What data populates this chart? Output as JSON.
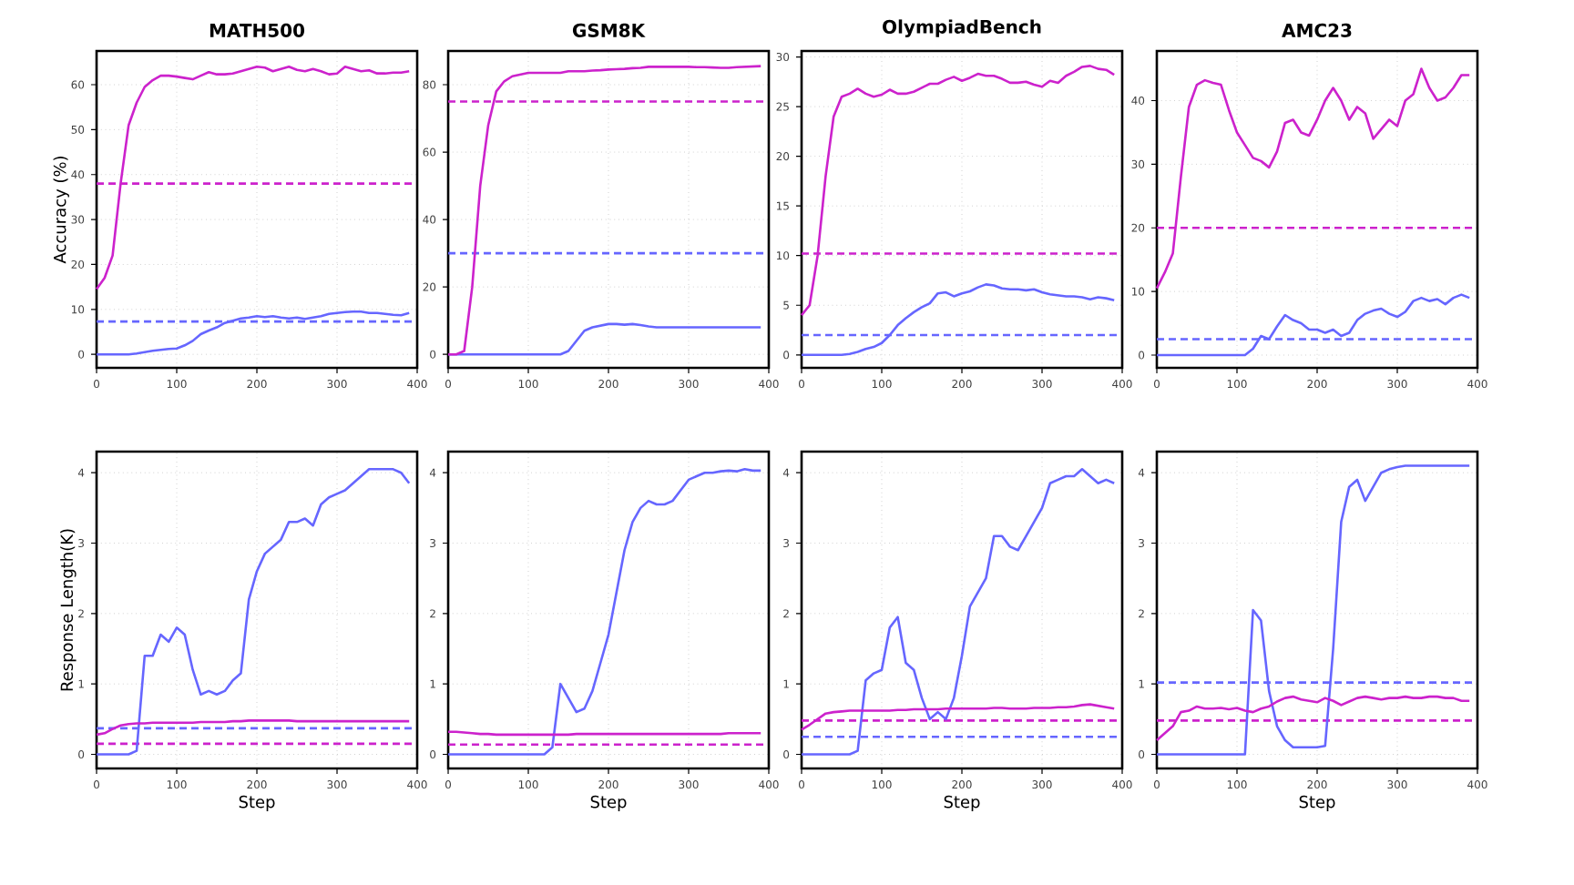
{
  "chart_data": [
    {
      "type": "line",
      "title": "MATH500",
      "ylabel": "Accuracy (%)",
      "grid": true,
      "xlim": [
        0,
        400
      ],
      "xticks": [
        0,
        100,
        200,
        300,
        400
      ],
      "ylim": [
        -3,
        67.5
      ],
      "yticks": [
        0,
        10,
        20,
        30,
        40,
        50,
        60
      ],
      "x": [
        0,
        10,
        20,
        30,
        40,
        50,
        60,
        70,
        80,
        90,
        100,
        110,
        120,
        130,
        140,
        150,
        160,
        170,
        180,
        190,
        200,
        210,
        220,
        230,
        240,
        250,
        260,
        270,
        280,
        290,
        300,
        310,
        320,
        330,
        340,
        350,
        360,
        370,
        380,
        390
      ],
      "series": [
        {
          "color": "#6666ff",
          "values": [
            0,
            0,
            0,
            0,
            0,
            0.2,
            0.5,
            0.8,
            1,
            1.2,
            1.3,
            2,
            3,
            4.5,
            5.3,
            6,
            7,
            7.5,
            8,
            8.2,
            8.5,
            8.3,
            8.5,
            8.2,
            8,
            8.2,
            7.9,
            8.2,
            8.5,
            9,
            9.2,
            9.4,
            9.5,
            9.5,
            9.2,
            9.2,
            9,
            8.8,
            8.7,
            9.2
          ]
        },
        {
          "color": "#cc22cc",
          "values": [
            14.5,
            17,
            22,
            38,
            51,
            56,
            59.5,
            61,
            62,
            62,
            61.8,
            61.5,
            61.2,
            62,
            62.8,
            62.3,
            62.3,
            62.5,
            63,
            63.5,
            64,
            63.8,
            63,
            63.5,
            64,
            63.3,
            63,
            63.5,
            63,
            62.3,
            62.5,
            64,
            63.5,
            63,
            63.2,
            62.5,
            62.5,
            62.7,
            62.7,
            63
          ]
        }
      ],
      "ref_lines": [
        {
          "axis": "y",
          "value": 38,
          "color": "#cc22cc",
          "line_style": "dashed"
        },
        {
          "axis": "y",
          "value": 7.3,
          "color": "#6666ff",
          "line_style": "dashed"
        }
      ]
    },
    {
      "type": "line",
      "title": "GSM8K",
      "grid": true,
      "xlim": [
        0,
        400
      ],
      "xticks": [
        0,
        100,
        200,
        300,
        400
      ],
      "ylim": [
        -4,
        90
      ],
      "yticks": [
        0,
        20,
        40,
        60,
        80
      ],
      "x": [
        0,
        10,
        20,
        30,
        40,
        50,
        60,
        70,
        80,
        90,
        100,
        110,
        120,
        130,
        140,
        150,
        160,
        170,
        180,
        190,
        200,
        210,
        220,
        230,
        240,
        250,
        260,
        270,
        280,
        290,
        300,
        310,
        320,
        330,
        340,
        350,
        360,
        370,
        380,
        390
      ],
      "series": [
        {
          "color": "#6666ff",
          "values": [
            0,
            0,
            0,
            0,
            0,
            0,
            0,
            0,
            0,
            0,
            0,
            0,
            0,
            0,
            0,
            1,
            4,
            7,
            8,
            8.5,
            9,
            9,
            8.8,
            9,
            8.7,
            8.3,
            8,
            8,
            8,
            8,
            8,
            8,
            8,
            8,
            8,
            8,
            8,
            8,
            8,
            8
          ]
        },
        {
          "color": "#cc22cc",
          "values": [
            0,
            0,
            1,
            20,
            50,
            68,
            78,
            81,
            82.5,
            83,
            83.5,
            83.5,
            83.5,
            83.5,
            83.5,
            84,
            84,
            84,
            84.2,
            84.3,
            84.5,
            84.6,
            84.7,
            84.9,
            85,
            85.3,
            85.3,
            85.3,
            85.3,
            85.3,
            85.3,
            85.2,
            85.2,
            85.1,
            85,
            85,
            85.2,
            85.3,
            85.4,
            85.5
          ]
        }
      ],
      "ref_lines": [
        {
          "axis": "y",
          "value": 75,
          "color": "#cc22cc",
          "line_style": "dashed"
        },
        {
          "axis": "y",
          "value": 30,
          "color": "#6666ff",
          "line_style": "dashed"
        }
      ]
    },
    {
      "type": "line",
      "title": "OlympiadBench",
      "grid": true,
      "xlim": [
        0,
        400
      ],
      "xticks": [
        0,
        100,
        200,
        300,
        400
      ],
      "ylim": [
        -1.3,
        30.6
      ],
      "yticks": [
        0,
        5,
        10,
        15,
        20,
        25,
        30
      ],
      "x": [
        0,
        10,
        20,
        30,
        40,
        50,
        60,
        70,
        80,
        90,
        100,
        110,
        120,
        130,
        140,
        150,
        160,
        170,
        180,
        190,
        200,
        210,
        220,
        230,
        240,
        250,
        260,
        270,
        280,
        290,
        300,
        310,
        320,
        330,
        340,
        350,
        360,
        370,
        380,
        390
      ],
      "series": [
        {
          "color": "#6666ff",
          "values": [
            0,
            0,
            0,
            0,
            0,
            0,
            0.1,
            0.3,
            0.6,
            0.8,
            1.2,
            2,
            3,
            3.7,
            4.3,
            4.8,
            5.2,
            6.2,
            6.3,
            5.9,
            6.2,
            6.4,
            6.8,
            7.1,
            7,
            6.7,
            6.6,
            6.6,
            6.5,
            6.6,
            6.3,
            6.1,
            6,
            5.9,
            5.9,
            5.8,
            5.6,
            5.8,
            5.7,
            5.5
          ]
        },
        {
          "color": "#cc22cc",
          "values": [
            4,
            5,
            10,
            18,
            24,
            26,
            26.3,
            26.8,
            26.3,
            26,
            26.2,
            26.7,
            26.3,
            26.3,
            26.5,
            26.9,
            27.3,
            27.3,
            27.7,
            28,
            27.6,
            27.9,
            28.3,
            28.1,
            28.1,
            27.8,
            27.4,
            27.4,
            27.5,
            27.2,
            27,
            27.6,
            27.4,
            28.1,
            28.5,
            29,
            29.1,
            28.8,
            28.7,
            28.2
          ]
        }
      ],
      "ref_lines": [
        {
          "axis": "y",
          "value": 10.2,
          "color": "#cc22cc",
          "line_style": "dashed"
        },
        {
          "axis": "y",
          "value": 2,
          "color": "#6666ff",
          "line_style": "dashed"
        }
      ]
    },
    {
      "type": "line",
      "title": "AMC23",
      "grid": true,
      "xlim": [
        0,
        400
      ],
      "xticks": [
        0,
        100,
        200,
        300,
        400
      ],
      "ylim": [
        -2,
        47.8
      ],
      "yticks": [
        0,
        10,
        20,
        30,
        40
      ],
      "x": [
        0,
        10,
        20,
        30,
        40,
        50,
        60,
        70,
        80,
        90,
        100,
        110,
        120,
        130,
        140,
        150,
        160,
        170,
        180,
        190,
        200,
        210,
        220,
        230,
        240,
        250,
        260,
        270,
        280,
        290,
        300,
        310,
        320,
        330,
        340,
        350,
        360,
        370,
        380,
        390
      ],
      "series": [
        {
          "color": "#6666ff",
          "values": [
            0,
            0,
            0,
            0,
            0,
            0,
            0,
            0,
            0,
            0,
            0,
            0,
            1,
            3,
            2.5,
            4.5,
            6.3,
            5.5,
            5,
            4,
            4,
            3.5,
            4,
            3,
            3.5,
            5.5,
            6.5,
            7,
            7.3,
            6.5,
            6,
            6.8,
            8.5,
            9,
            8.5,
            8.8,
            8,
            9,
            9.5,
            9
          ]
        },
        {
          "color": "#cc22cc",
          "values": [
            10.5,
            13,
            16,
            28,
            39,
            42.5,
            43.2,
            42.8,
            42.5,
            38.5,
            35,
            33,
            31,
            30.5,
            29.5,
            32,
            36.5,
            37,
            35,
            34.5,
            37,
            40,
            42,
            40,
            37,
            39,
            38,
            34,
            35.5,
            37,
            36,
            40,
            41,
            45,
            42,
            40,
            40.5,
            42,
            44,
            44
          ]
        }
      ],
      "ref_lines": [
        {
          "axis": "y",
          "value": 20,
          "color": "#cc22cc",
          "line_style": "dashed"
        },
        {
          "axis": "y",
          "value": 2.5,
          "color": "#6666ff",
          "line_style": "dashed"
        }
      ]
    },
    {
      "type": "line",
      "xlabel": "Step",
      "ylabel": "Response Length(K)",
      "grid": true,
      "xlim": [
        0,
        400
      ],
      "xticks": [
        0,
        100,
        200,
        300,
        400
      ],
      "ylim": [
        -0.2,
        4.3
      ],
      "yticks": [
        0,
        1,
        2,
        3,
        4
      ],
      "x": [
        0,
        10,
        20,
        30,
        40,
        50,
        60,
        70,
        80,
        90,
        100,
        110,
        120,
        130,
        140,
        150,
        160,
        170,
        180,
        190,
        200,
        210,
        220,
        230,
        240,
        250,
        260,
        270,
        280,
        290,
        300,
        310,
        320,
        330,
        340,
        350,
        360,
        370,
        380,
        390
      ],
      "series": [
        {
          "color": "#6666ff",
          "values": [
            0,
            0,
            0,
            0,
            0,
            0.05,
            1.4,
            1.4,
            1.7,
            1.6,
            1.8,
            1.7,
            1.2,
            0.85,
            0.9,
            0.85,
            0.9,
            1.05,
            1.15,
            2.2,
            2.6,
            2.85,
            2.95,
            3.05,
            3.3,
            3.3,
            3.35,
            3.25,
            3.55,
            3.65,
            3.7,
            3.75,
            3.85,
            3.95,
            4.05,
            4.05,
            4.05,
            4.05,
            4,
            3.85
          ]
        },
        {
          "color": "#cc22cc",
          "values": [
            0.28,
            0.3,
            0.36,
            0.41,
            0.43,
            0.44,
            0.44,
            0.45,
            0.45,
            0.45,
            0.45,
            0.45,
            0.45,
            0.46,
            0.46,
            0.46,
            0.46,
            0.47,
            0.47,
            0.48,
            0.48,
            0.48,
            0.48,
            0.48,
            0.48,
            0.47,
            0.47,
            0.47,
            0.47,
            0.47,
            0.47,
            0.47,
            0.47,
            0.47,
            0.47,
            0.47,
            0.47,
            0.47,
            0.47,
            0.47
          ]
        }
      ],
      "ref_lines": [
        {
          "axis": "y",
          "value": 0.37,
          "color": "#6666ff",
          "line_style": "dashed"
        },
        {
          "axis": "y",
          "value": 0.15,
          "color": "#cc22cc",
          "line_style": "dashed"
        }
      ]
    },
    {
      "type": "line",
      "xlabel": "Step",
      "grid": true,
      "xlim": [
        0,
        400
      ],
      "xticks": [
        0,
        100,
        200,
        300,
        400
      ],
      "ylim": [
        -0.2,
        4.3
      ],
      "yticks": [
        0,
        1,
        2,
        3,
        4
      ],
      "x": [
        0,
        10,
        20,
        30,
        40,
        50,
        60,
        70,
        80,
        90,
        100,
        110,
        120,
        130,
        140,
        150,
        160,
        170,
        180,
        190,
        200,
        210,
        220,
        230,
        240,
        250,
        260,
        270,
        280,
        290,
        300,
        310,
        320,
        330,
        340,
        350,
        360,
        370,
        380,
        390
      ],
      "series": [
        {
          "color": "#6666ff",
          "values": [
            0,
            0,
            0,
            0,
            0,
            0,
            0,
            0,
            0,
            0,
            0,
            0,
            0,
            0.1,
            1,
            0.8,
            0.6,
            0.65,
            0.9,
            1.3,
            1.7,
            2.3,
            2.9,
            3.3,
            3.5,
            3.6,
            3.55,
            3.55,
            3.6,
            3.75,
            3.9,
            3.95,
            4,
            4,
            4.02,
            4.03,
            4.02,
            4.05,
            4.03,
            4.03
          ]
        },
        {
          "color": "#cc22cc",
          "values": [
            0.32,
            0.32,
            0.31,
            0.3,
            0.29,
            0.29,
            0.28,
            0.28,
            0.28,
            0.28,
            0.28,
            0.28,
            0.28,
            0.28,
            0.28,
            0.28,
            0.29,
            0.29,
            0.29,
            0.29,
            0.29,
            0.29,
            0.29,
            0.29,
            0.29,
            0.29,
            0.29,
            0.29,
            0.29,
            0.29,
            0.29,
            0.29,
            0.29,
            0.29,
            0.29,
            0.3,
            0.3,
            0.3,
            0.3,
            0.3
          ]
        }
      ],
      "ref_lines": [
        {
          "axis": "y",
          "value": 0.14,
          "color": "#cc22cc",
          "line_style": "dashed"
        }
      ]
    },
    {
      "type": "line",
      "xlabel": "Step",
      "grid": true,
      "xlim": [
        0,
        400
      ],
      "xticks": [
        0,
        100,
        200,
        300,
        400
      ],
      "ylim": [
        -0.2,
        4.3
      ],
      "yticks": [
        0,
        1,
        2,
        3,
        4
      ],
      "x": [
        0,
        10,
        20,
        30,
        40,
        50,
        60,
        70,
        80,
        90,
        100,
        110,
        120,
        130,
        140,
        150,
        160,
        170,
        180,
        190,
        200,
        210,
        220,
        230,
        240,
        250,
        260,
        270,
        280,
        290,
        300,
        310,
        320,
        330,
        340,
        350,
        360,
        370,
        380,
        390
      ],
      "series": [
        {
          "color": "#6666ff",
          "values": [
            0,
            0,
            0,
            0,
            0,
            0,
            0,
            0.05,
            1.05,
            1.15,
            1.2,
            1.8,
            1.95,
            1.3,
            1.2,
            0.8,
            0.5,
            0.6,
            0.5,
            0.8,
            1.4,
            2.1,
            2.3,
            2.5,
            3.1,
            3.1,
            2.95,
            2.9,
            3.1,
            3.3,
            3.5,
            3.85,
            3.9,
            3.95,
            3.95,
            4.05,
            3.95,
            3.85,
            3.9,
            3.85
          ]
        },
        {
          "color": "#cc22cc",
          "values": [
            0.35,
            0.42,
            0.5,
            0.58,
            0.6,
            0.61,
            0.62,
            0.62,
            0.62,
            0.62,
            0.62,
            0.62,
            0.63,
            0.63,
            0.64,
            0.64,
            0.64,
            0.64,
            0.65,
            0.65,
            0.65,
            0.65,
            0.65,
            0.65,
            0.66,
            0.66,
            0.65,
            0.65,
            0.65,
            0.66,
            0.66,
            0.66,
            0.67,
            0.67,
            0.68,
            0.7,
            0.71,
            0.69,
            0.67,
            0.65
          ]
        }
      ],
      "ref_lines": [
        {
          "axis": "y",
          "value": 0.48,
          "color": "#cc22cc",
          "line_style": "dashed"
        },
        {
          "axis": "y",
          "value": 0.25,
          "color": "#6666ff",
          "line_style": "dashed"
        }
      ]
    },
    {
      "type": "line",
      "xlabel": "Step",
      "grid": true,
      "xlim": [
        0,
        400
      ],
      "xticks": [
        0,
        100,
        200,
        300,
        400
      ],
      "ylim": [
        -0.2,
        4.3
      ],
      "yticks": [
        0,
        1,
        2,
        3,
        4
      ],
      "x": [
        0,
        10,
        20,
        30,
        40,
        50,
        60,
        70,
        80,
        90,
        100,
        110,
        120,
        130,
        140,
        150,
        160,
        170,
        180,
        190,
        200,
        210,
        220,
        230,
        240,
        250,
        260,
        270,
        280,
        290,
        300,
        310,
        320,
        330,
        340,
        350,
        360,
        370,
        380,
        390
      ],
      "series": [
        {
          "color": "#6666ff",
          "values": [
            0,
            0,
            0,
            0,
            0,
            0,
            0,
            0,
            0,
            0,
            0,
            0,
            2.05,
            1.9,
            0.9,
            0.4,
            0.2,
            0.1,
            0.1,
            0.1,
            0.1,
            0.12,
            1.5,
            3.3,
            3.8,
            3.9,
            3.6,
            3.8,
            4,
            4.05,
            4.08,
            4.1,
            4.1,
            4.1,
            4.1,
            4.1,
            4.1,
            4.1,
            4.1,
            4.1
          ]
        },
        {
          "color": "#cc22cc",
          "values": [
            0.2,
            0.3,
            0.4,
            0.6,
            0.62,
            0.68,
            0.65,
            0.65,
            0.66,
            0.64,
            0.66,
            0.62,
            0.6,
            0.65,
            0.68,
            0.75,
            0.8,
            0.82,
            0.78,
            0.76,
            0.74,
            0.8,
            0.76,
            0.7,
            0.75,
            0.8,
            0.82,
            0.8,
            0.78,
            0.8,
            0.8,
            0.82,
            0.8,
            0.8,
            0.82,
            0.82,
            0.8,
            0.8,
            0.76,
            0.76
          ]
        }
      ],
      "ref_lines": [
        {
          "axis": "y",
          "value": 1.02,
          "color": "#6666ff",
          "line_style": "dashed"
        },
        {
          "axis": "y",
          "value": 0.48,
          "color": "#cc22cc",
          "line_style": "dashed"
        }
      ]
    }
  ]
}
